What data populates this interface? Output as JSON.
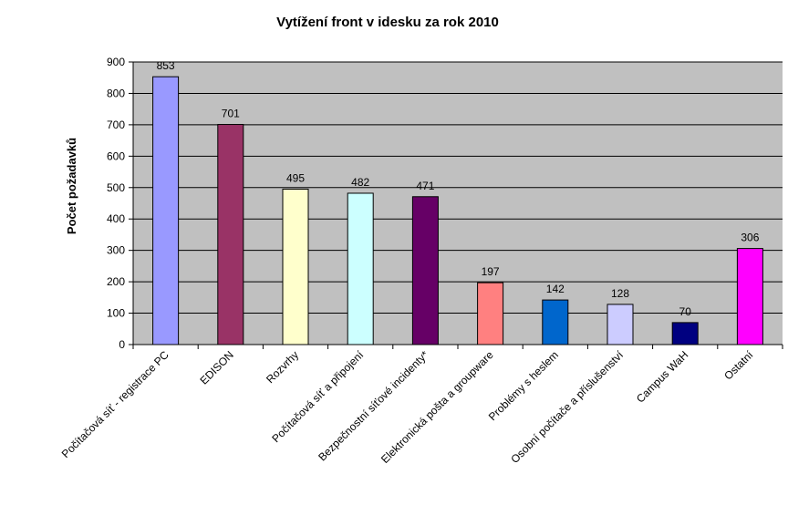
{
  "chart_data": {
    "type": "bar",
    "title": "Vytížení front v idesku za rok 2010",
    "ylabel": "Počet požadavků",
    "xlabel": "",
    "ylim": [
      0,
      900
    ],
    "yticks": [
      0,
      100,
      200,
      300,
      400,
      500,
      600,
      700,
      800,
      900
    ],
    "grid": true,
    "legend": "none",
    "plot_background": "#c0c0c0",
    "categories": [
      "Počítačová síť - registrace PC",
      "EDISON",
      "Rozvrhy",
      "Počítačová síť a připojení",
      "Bezpečnostní síťové incidenty*",
      "Elektronická pošta a groupware",
      "Problémy s heslem",
      "Osobní počítače a příslušenství",
      "Campus WaH",
      "Ostatní"
    ],
    "values": [
      853,
      701,
      495,
      482,
      471,
      197,
      142,
      128,
      70,
      306
    ],
    "data_labels": [
      "853",
      "701",
      "495",
      "482",
      "471",
      "197",
      "142",
      "128",
      "70",
      "306"
    ],
    "colors": [
      "#9999ff",
      "#993366",
      "#ffffcc",
      "#ccffff",
      "#660066",
      "#ff8080",
      "#0066cc",
      "#ccccff",
      "#000080",
      "#ff00ff"
    ]
  }
}
